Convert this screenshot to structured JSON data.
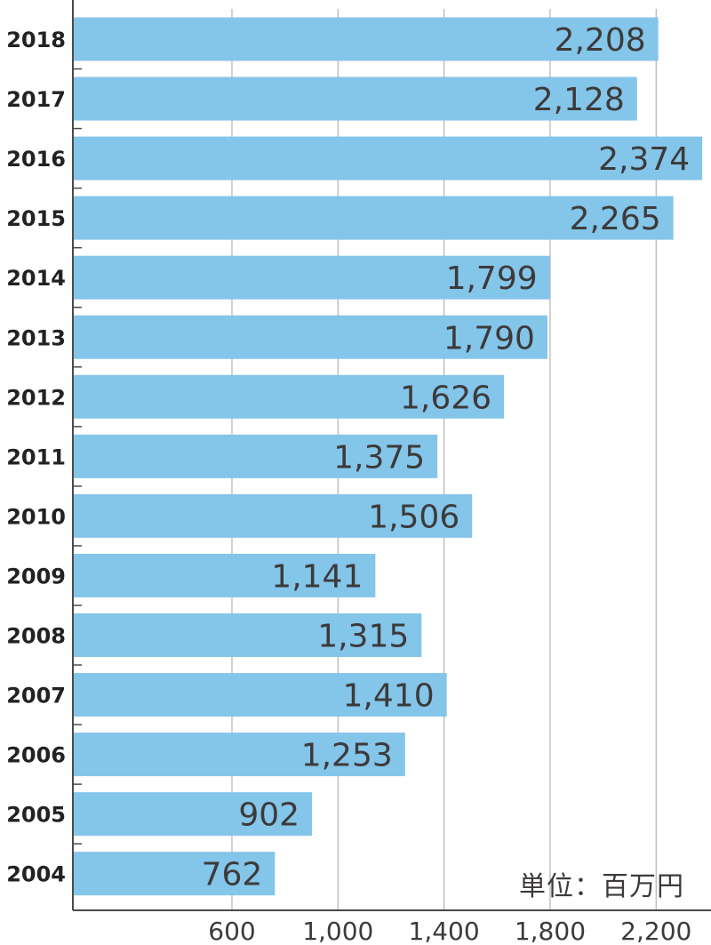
{
  "chart_data": {
    "type": "bar",
    "orientation": "horizontal",
    "unit_label": "単位：百万円",
    "categories": [
      "2018",
      "2017",
      "2016",
      "2015",
      "2014",
      "2013",
      "2012",
      "2011",
      "2010",
      "2009",
      "2008",
      "2007",
      "2006",
      "2005",
      "2004"
    ],
    "values": [
      2208,
      2128,
      2374,
      2265,
      1799,
      1790,
      1626,
      1375,
      1506,
      1141,
      1315,
      1410,
      1253,
      902,
      762
    ],
    "value_labels": [
      "2,208",
      "2,128",
      "2,374",
      "2,265",
      "1,799",
      "1,790",
      "1,626",
      "1,375",
      "1,506",
      "1,141",
      "1,315",
      "1,410",
      "1,253",
      "902",
      "762"
    ],
    "x_ticks": [
      600,
      1000,
      1400,
      1800,
      2200
    ],
    "x_tick_labels": [
      "600",
      "1,000",
      "1,400",
      "1,800",
      "2,200"
    ],
    "xlim": [
      0,
      2400
    ],
    "grid": true,
    "colors": {
      "bar": "#84c5ea",
      "text": "#3d3a39",
      "grid": "#b3b3b3",
      "axis": "#4a4a4a"
    }
  }
}
